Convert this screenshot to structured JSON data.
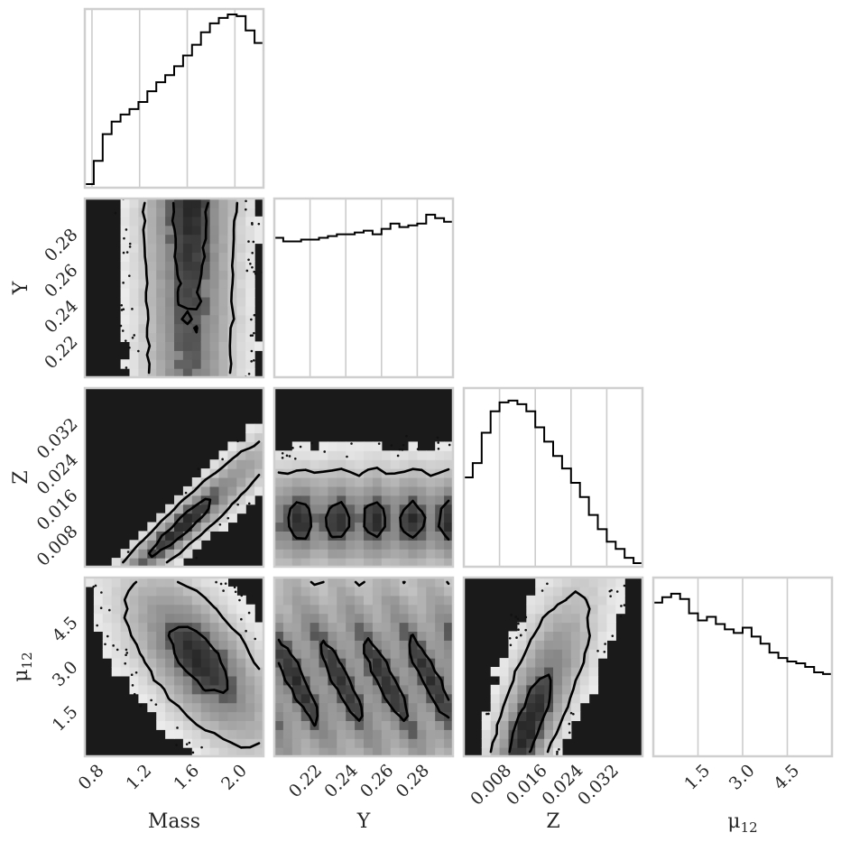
{
  "chart_data": {
    "type": "corner",
    "parameters": [
      {
        "key": "mass",
        "label": "Mass",
        "label_sub": "",
        "ticks": [
          "0.8",
          "1.2",
          "1.6",
          "2.0"
        ],
        "tick_values": [
          0.8,
          1.2,
          1.6,
          2.0
        ],
        "range": [
          0.74,
          2.24
        ]
      },
      {
        "key": "y",
        "label": "Y",
        "label_sub": "",
        "ticks": [
          "0.22",
          "0.24",
          "0.26",
          "0.28"
        ],
        "tick_values": [
          0.22,
          0.24,
          0.26,
          0.28
        ],
        "range": [
          0.2,
          0.3
        ]
      },
      {
        "key": "z",
        "label": "Z",
        "label_sub": "",
        "ticks": [
          "0.008",
          "0.016",
          "0.024",
          "0.032"
        ],
        "tick_values": [
          0.008,
          0.016,
          0.024,
          0.032
        ],
        "range": [
          0.0,
          0.04
        ]
      },
      {
        "key": "mu12",
        "label": "μ",
        "label_sub": "12",
        "ticks": [
          "1.5",
          "3.0",
          "4.5"
        ],
        "tick_values": [
          1.5,
          3.0,
          4.5
        ],
        "range": [
          0.0,
          6.0
        ]
      }
    ],
    "histograms": [
      {
        "parameter": "mass",
        "bins_start": 0.74,
        "bin_width": 0.075,
        "counts": [
          0.02,
          0.15,
          0.3,
          0.37,
          0.41,
          0.44,
          0.48,
          0.54,
          0.59,
          0.63,
          0.68,
          0.74,
          0.8,
          0.87,
          0.92,
          0.95,
          0.97,
          0.96,
          0.88,
          0.81
        ]
      },
      {
        "parameter": "y",
        "bins_start": 0.2,
        "bin_width": 0.005,
        "counts": [
          0.78,
          0.76,
          0.76,
          0.77,
          0.77,
          0.78,
          0.79,
          0.8,
          0.8,
          0.81,
          0.82,
          0.8,
          0.83,
          0.86,
          0.84,
          0.85,
          0.86,
          0.91,
          0.89,
          0.87
        ]
      },
      {
        "parameter": "z",
        "bins_start": 0.0,
        "bin_width": 0.002,
        "counts": [
          0.5,
          0.58,
          0.75,
          0.87,
          0.92,
          0.93,
          0.91,
          0.87,
          0.78,
          0.7,
          0.62,
          0.55,
          0.47,
          0.39,
          0.29,
          0.21,
          0.14,
          0.1,
          0.05,
          0.02
        ]
      },
      {
        "parameter": "mu12",
        "bins_start": 0.0,
        "bin_width": 0.3,
        "counts": [
          0.86,
          0.89,
          0.91,
          0.88,
          0.8,
          0.76,
          0.78,
          0.74,
          0.71,
          0.69,
          0.72,
          0.67,
          0.63,
          0.58,
          0.55,
          0.53,
          0.52,
          0.5,
          0.47,
          0.46
        ]
      }
    ],
    "pair_densities": [
      {
        "x": "mass",
        "y": "y",
        "ridge": "mass_at_y",
        "ridge_coeffs": [
          1.62,
          0.0
        ],
        "spread": 0.28
      },
      {
        "x": "mass",
        "y": "z",
        "ridge": "z_at_mass",
        "ridge_coeffs": [
          -0.0275,
          0.0235
        ],
        "spread": 0.0037
      },
      {
        "x": "y",
        "y": "z",
        "ridge": "z_flat",
        "ridge_coeffs": [
          0.0105,
          0.0
        ],
        "spread": 0.0085
      },
      {
        "x": "mass",
        "y": "mu12",
        "ridge": "mu_at_mass",
        "ridge_coeffs": [
          -1.1,
          0.0
        ],
        "spread": 2.9
      },
      {
        "x": "y",
        "y": "mu12",
        "ridge": "mu_flat",
        "ridge_coeffs": [
          0.0,
          0.0
        ],
        "spread": 3.5
      },
      {
        "x": "z",
        "y": "mu12",
        "ridge": "z_at_mu",
        "ridge_coeffs": [
          0.012,
          0.0024
        ],
        "spread": 0.0045
      }
    ],
    "contour_levels": [
      0.39,
      0.86
    ],
    "grid": true,
    "title": "",
    "colormap": "greys",
    "colors": {
      "frame": "#cfcfcf",
      "grid": "#cccccc",
      "line": "#000000",
      "text": "#262626",
      "dense": "#1a1a1a"
    }
  }
}
